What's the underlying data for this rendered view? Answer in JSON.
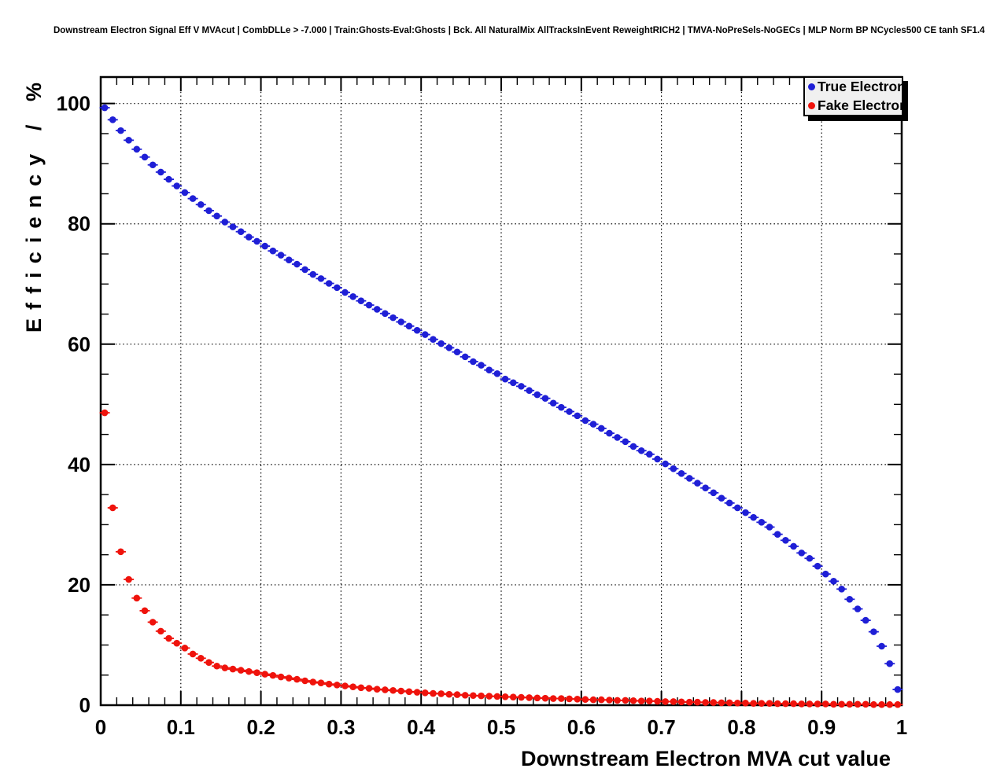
{
  "title": "Downstream Electron Signal Eff V MVAcut | CombDLLe > -7.000 | Train:Ghosts-Eval:Ghosts | Bck. All NaturalMix AllTracksInEvent ReweightRICH2 | TMVA-NoPreSels-NoGECs | MLP Norm BP NCycles500 CE tanh SF1.4",
  "legend": {
    "entries": [
      {
        "label": "True Electron",
        "color": "#1f1fd6"
      },
      {
        "label": "Fake Electron",
        "color": "#ef130c"
      }
    ]
  },
  "chart_data": {
    "type": "scatter",
    "title": "Downstream Electron Signal Eff V MVAcut | CombDLLe > -7.000 | Train:Ghosts-Eval:Ghosts | Bck. All NaturalMix AllTracksInEvent ReweightRICH2 | TMVA-NoPreSels-NoGECs | MLP Norm BP NCycles500 CE tanh SF1.4",
    "xlabel": "Downstream Electron MVA cut value",
    "ylabel": "Efficiency / %",
    "xlim": [
      0,
      1
    ],
    "ylim": [
      0,
      104.4
    ],
    "grid": "dotted-on-major-ticks",
    "legend_position": "top-right",
    "marker": "filled-circle-with-horizontal-error-bars",
    "x_error": 0.005,
    "x_minor_tick_step": 0.02,
    "y_minor_tick_step": 5,
    "x_ticks": [
      {
        "v": 0,
        "label": "0"
      },
      {
        "v": 0.1,
        "label": "0.1"
      },
      {
        "v": 0.2,
        "label": "0.2"
      },
      {
        "v": 0.3,
        "label": "0.3"
      },
      {
        "v": 0.4,
        "label": "0.4"
      },
      {
        "v": 0.5,
        "label": "0.5"
      },
      {
        "v": 0.6,
        "label": "0.6"
      },
      {
        "v": 0.7,
        "label": "0.7"
      },
      {
        "v": 0.8,
        "label": "0.8"
      },
      {
        "v": 0.9,
        "label": "0.9"
      },
      {
        "v": 1,
        "label": "1"
      }
    ],
    "y_ticks": [
      {
        "v": 0,
        "label": "0"
      },
      {
        "v": 20,
        "label": "20"
      },
      {
        "v": 40,
        "label": "40"
      },
      {
        "v": 60,
        "label": "60"
      },
      {
        "v": 80,
        "label": "80"
      },
      {
        "v": 100,
        "label": "100"
      }
    ],
    "x": [
      0.005,
      0.015,
      0.025,
      0.035,
      0.045,
      0.055,
      0.065,
      0.075,
      0.085,
      0.095,
      0.105,
      0.115,
      0.125,
      0.135,
      0.145,
      0.155,
      0.165,
      0.175,
      0.185,
      0.195,
      0.205,
      0.215,
      0.225,
      0.235,
      0.245,
      0.255,
      0.265,
      0.275,
      0.285,
      0.295,
      0.305,
      0.315,
      0.325,
      0.335,
      0.345,
      0.355,
      0.365,
      0.375,
      0.385,
      0.395,
      0.405,
      0.415,
      0.425,
      0.435,
      0.445,
      0.455,
      0.465,
      0.475,
      0.485,
      0.495,
      0.505,
      0.515,
      0.525,
      0.535,
      0.545,
      0.555,
      0.565,
      0.575,
      0.585,
      0.595,
      0.605,
      0.615,
      0.625,
      0.635,
      0.645,
      0.655,
      0.665,
      0.675,
      0.685,
      0.695,
      0.705,
      0.715,
      0.725,
      0.735,
      0.745,
      0.755,
      0.765,
      0.775,
      0.785,
      0.795,
      0.805,
      0.815,
      0.825,
      0.835,
      0.845,
      0.855,
      0.865,
      0.875,
      0.885,
      0.895,
      0.905,
      0.915,
      0.925,
      0.935,
      0.945,
      0.955,
      0.965,
      0.975,
      0.985,
      0.995
    ],
    "series": [
      {
        "name": "True Electron",
        "color": "#1f1fd6",
        "values": [
          99.3,
          97.3,
          95.5,
          93.9,
          92.4,
          91.1,
          89.8,
          88.6,
          87.4,
          86.3,
          85.2,
          84.2,
          83.2,
          82.2,
          81.3,
          80.3,
          79.5,
          78.7,
          77.8,
          77.1,
          76.3,
          75.5,
          74.8,
          74.0,
          73.3,
          72.4,
          71.6,
          70.9,
          70.1,
          69.4,
          68.6,
          67.9,
          67.2,
          66.5,
          65.8,
          65.1,
          64.4,
          63.7,
          63.0,
          62.3,
          61.6,
          60.8,
          60.1,
          59.4,
          58.7,
          57.9,
          57.1,
          56.5,
          55.7,
          55.1,
          54.2,
          53.6,
          53.0,
          52.3,
          51.6,
          51.0,
          50.2,
          49.5,
          48.8,
          48.1,
          47.3,
          46.7,
          46.0,
          45.2,
          44.5,
          43.8,
          43.0,
          42.3,
          41.7,
          40.9,
          40.1,
          39.3,
          38.5,
          37.7,
          36.9,
          36.1,
          35.3,
          34.4,
          33.6,
          32.8,
          32.0,
          31.2,
          30.4,
          29.6,
          28.4,
          27.4,
          26.4,
          25.3,
          24.4,
          23.1,
          21.8,
          20.6,
          19.3,
          17.6,
          16.0,
          14.1,
          12.2,
          9.8,
          6.9,
          2.6
        ]
      },
      {
        "name": "Fake Electron",
        "color": "#ef130c",
        "values": [
          48.6,
          32.8,
          25.5,
          20.9,
          17.8,
          15.7,
          13.8,
          12.3,
          11.1,
          10.3,
          9.5,
          8.5,
          7.8,
          7.1,
          6.5,
          6.2,
          6.0,
          5.8,
          5.6,
          5.4,
          5.15,
          4.95,
          4.7,
          4.5,
          4.3,
          4.05,
          3.85,
          3.7,
          3.5,
          3.35,
          3.2,
          3.05,
          2.9,
          2.8,
          2.65,
          2.55,
          2.45,
          2.35,
          2.25,
          2.15,
          2.05,
          1.95,
          1.9,
          1.8,
          1.75,
          1.65,
          1.6,
          1.55,
          1.5,
          1.45,
          1.4,
          1.35,
          1.3,
          1.25,
          1.2,
          1.15,
          1.1,
          1.1,
          1.05,
          1.0,
          0.95,
          0.9,
          0.9,
          0.85,
          0.8,
          0.8,
          0.75,
          0.7,
          0.7,
          0.65,
          0.6,
          0.6,
          0.55,
          0.5,
          0.5,
          0.45,
          0.45,
          0.4,
          0.4,
          0.35,
          0.35,
          0.3,
          0.3,
          0.3,
          0.25,
          0.25,
          0.25,
          0.2,
          0.2,
          0.2,
          0.2,
          0.15,
          0.15,
          0.15,
          0.15,
          0.15,
          0.1,
          0.1,
          0.1,
          0.1
        ]
      }
    ]
  }
}
